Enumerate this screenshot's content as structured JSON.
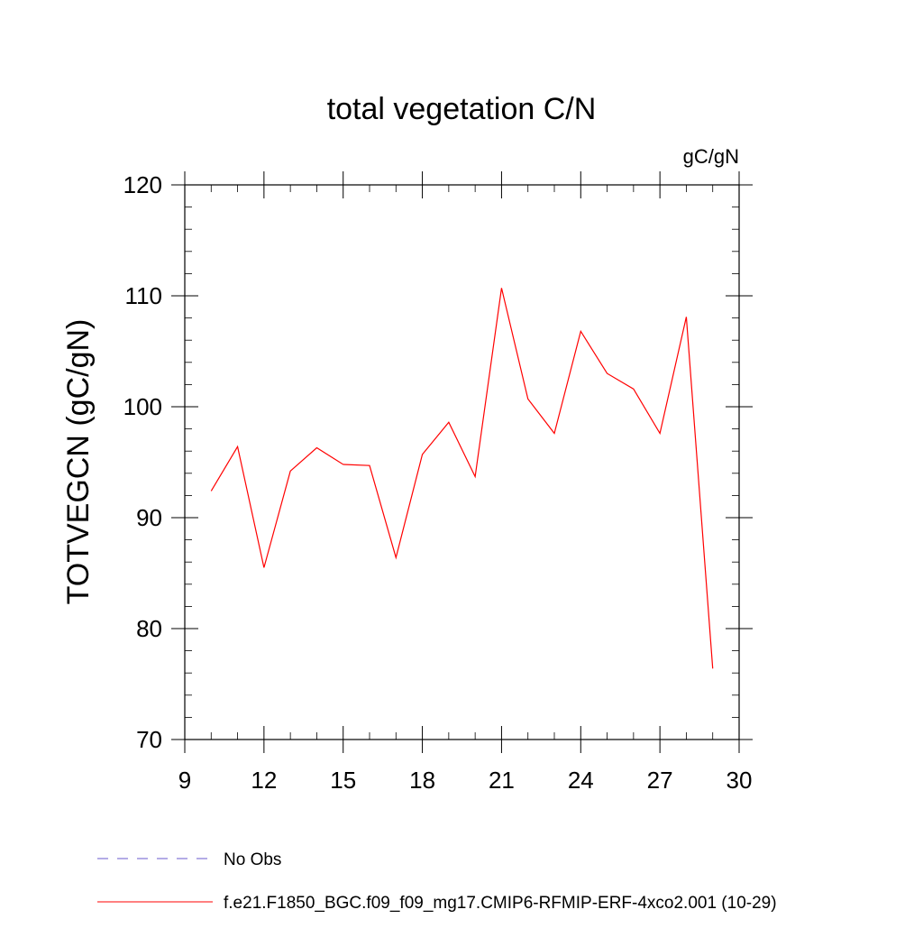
{
  "chart_data": {
    "type": "line",
    "title": "total vegetation C/N",
    "units": "gC/gN",
    "xlabel": "",
    "ylabel": "TOTVEGCN  (gC/gN)",
    "xlim": [
      9,
      30
    ],
    "ylim": [
      70,
      120
    ],
    "xticks": [
      9,
      12,
      15,
      18,
      21,
      24,
      27,
      30
    ],
    "yticks": [
      70,
      80,
      90,
      100,
      110,
      120
    ],
    "grid": false,
    "legend_position": "bottom-left",
    "series": [
      {
        "name": "No Obs",
        "style": "dashed",
        "color": "#6a5acd",
        "x": [],
        "y": []
      },
      {
        "name": "f.e21.F1850_BGC.f09_f09_mg17.CMIP6-RFMIP-ERF-4xco2.001 (10-29)",
        "style": "solid",
        "color": "#ff0000",
        "x": [
          10,
          11,
          12,
          13,
          14,
          15,
          16,
          17,
          18,
          19,
          20,
          21,
          22,
          23,
          24,
          25,
          26,
          27,
          28,
          29
        ],
        "y": [
          92.4,
          96.4,
          85.5,
          94.2,
          96.3,
          94.8,
          94.7,
          86.4,
          95.7,
          98.6,
          93.7,
          110.7,
          100.7,
          97.6,
          106.8,
          103.0,
          101.6,
          97.6,
          108.1,
          76.4
        ]
      }
    ]
  }
}
